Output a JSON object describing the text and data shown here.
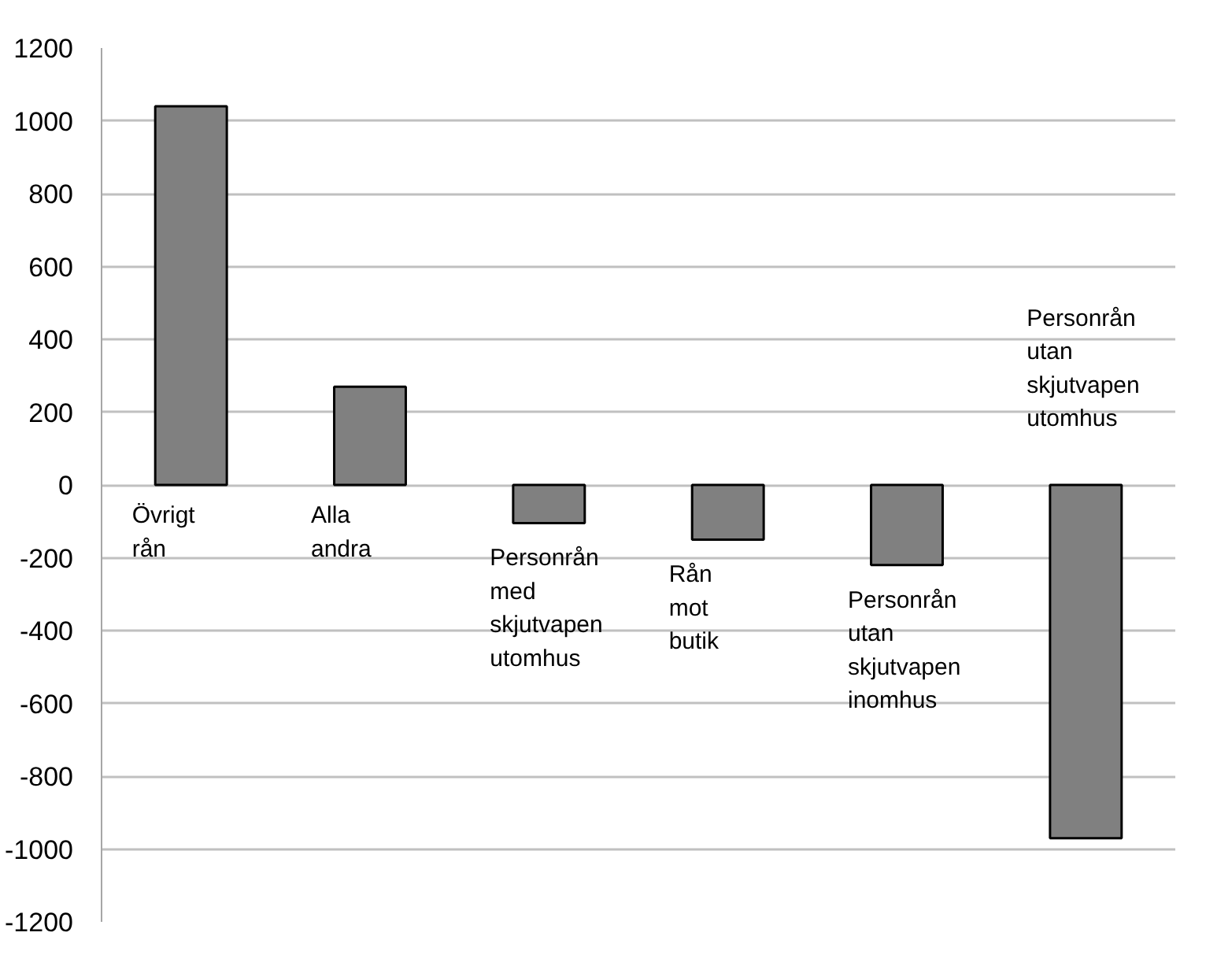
{
  "chart_data": {
    "type": "bar",
    "categories": [
      "Övrigt rån",
      "Alla andra",
      "Personrån med skjutvapen utomhus",
      "Rån mot butik",
      "Personrån utan skjutvapen inomhus",
      "Personrån utan skjutvapen utomhus"
    ],
    "values": [
      1040,
      270,
      -105,
      -150,
      -220,
      -970
    ],
    "color": "#808080",
    "ylim": [
      -1200,
      1200
    ],
    "yticks": [
      -1200,
      -1000,
      -800,
      -600,
      -400,
      -200,
      0,
      200,
      400,
      600,
      800,
      1000,
      1200
    ],
    "grid": "y"
  }
}
